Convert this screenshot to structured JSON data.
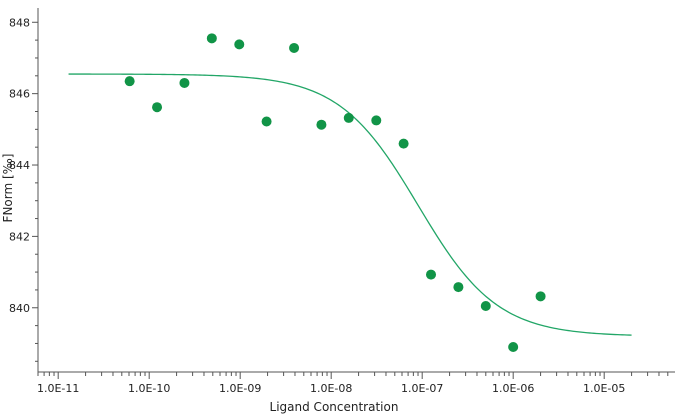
{
  "chart_data": {
    "type": "scatter",
    "title": "",
    "xlabel": "Ligand Concentration",
    "ylabel": "FNorm [‰]",
    "xscale": "log",
    "xlim": [
      6e-12,
      6e-05
    ],
    "ylim": [
      838.2,
      848.4
    ],
    "xticks": [
      1e-11,
      1e-10,
      1e-09,
      1e-08,
      1e-07,
      1e-06,
      1e-05
    ],
    "xtick_labels": [
      "1.0E-11",
      "1.0E-10",
      "1.0E-09",
      "1.0E-08",
      "1.0E-07",
      "1.0E-06",
      "1.0E-05"
    ],
    "yticks": [
      840,
      842,
      844,
      846,
      848
    ],
    "ytick_labels": [
      "840",
      "842",
      "844",
      "846",
      "848"
    ],
    "grid": false,
    "legend": "none",
    "colors": {
      "points": "#119447",
      "fit": "#22a667",
      "axis": "#555555"
    },
    "series": [
      {
        "kind": "points",
        "x": [
          6.1e-11,
          1.22e-10,
          2.44e-10,
          4.88e-10,
          9.77e-10,
          1.95e-09,
          3.91e-09,
          7.81e-09,
          1.56e-08,
          3.13e-08,
          6.25e-08,
          1.25e-07,
          2.5e-07,
          5e-07,
          1e-06,
          2e-06
        ],
        "y": [
          846.35,
          845.62,
          846.3,
          847.55,
          847.38,
          845.22,
          847.28,
          845.13,
          845.32,
          845.25,
          844.6,
          840.93,
          840.58,
          840.05,
          838.9,
          840.32
        ]
      },
      {
        "kind": "fit",
        "model": "sigmoid",
        "top": 846.55,
        "bottom": 839.2,
        "ec50": 9e-08,
        "hill": 1.0,
        "x_range": [
          1.3e-11,
          2e-05
        ]
      }
    ]
  }
}
